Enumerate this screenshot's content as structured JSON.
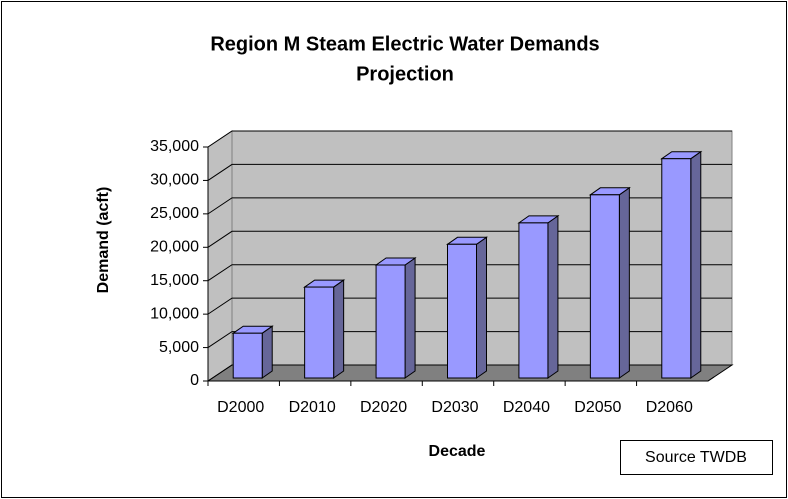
{
  "chart_data": {
    "type": "bar",
    "title": [
      "Region M Steam Electric Water Demands",
      "Projection"
    ],
    "x_label": "Decade",
    "y_label": "Demand (acft)",
    "annotation": "Source TWDB",
    "categories": [
      "D2000",
      "D2010",
      "D2020",
      "D2030",
      "D2040",
      "D2050",
      "D2060"
    ],
    "values": [
      6700,
      13600,
      16900,
      20000,
      23200,
      27400,
      32800
    ],
    "color": "#9999ff",
    "ylim": [
      0,
      35000
    ],
    "yticks": [
      0,
      {
        "value": 5000,
        "label": "5,000"
      },
      {
        "value": 10000,
        "label": "10,000"
      },
      {
        "value": 15000,
        "label": "15,000"
      },
      {
        "value": 20000,
        "label": "20,000"
      },
      {
        "value": 25000,
        "label": "25,000"
      },
      {
        "value": 30000,
        "label": "30,000"
      },
      {
        "value": 35000,
        "label": "35,000"
      }
    ],
    "grid": true
  }
}
